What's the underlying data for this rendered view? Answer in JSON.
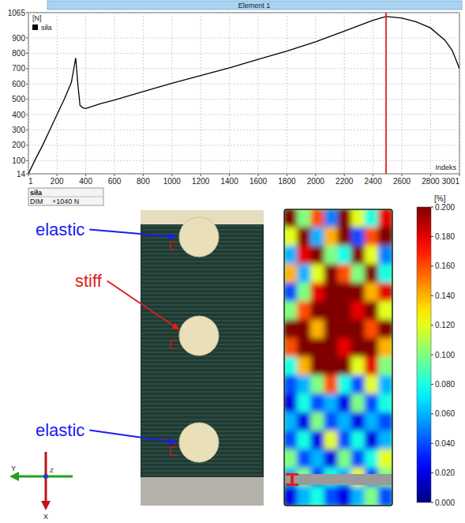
{
  "chart_data": {
    "type": "line",
    "title": "Element 1",
    "y_label": "[N]",
    "x_label": "Indeks",
    "x": [
      1,
      50,
      100,
      150,
      200,
      250,
      300,
      330,
      345,
      360,
      380,
      400,
      500,
      600,
      800,
      1000,
      1200,
      1400,
      1600,
      1800,
      2000,
      2200,
      2400,
      2490,
      2600,
      2700,
      2800,
      2900,
      2950,
      3001
    ],
    "series": [
      {
        "name": "siła",
        "color": "#000000",
        "values": [
          14,
          110,
          200,
          300,
          400,
          500,
          610,
          770,
          600,
          460,
          445,
          440,
          470,
          495,
          550,
          605,
          655,
          705,
          760,
          815,
          875,
          945,
          1015,
          1040,
          1030,
          1005,
          965,
          885,
          820,
          700
        ]
      }
    ],
    "xlim": [
      1,
      3001
    ],
    "ylim": [
      14,
      1065
    ],
    "xticks": [
      1,
      200,
      400,
      600,
      800,
      1000,
      1200,
      1400,
      1600,
      1800,
      2000,
      2200,
      2400,
      2600,
      2800,
      3001
    ],
    "yticks": [
      14,
      100,
      200,
      300,
      400,
      500,
      600,
      700,
      800,
      900,
      1065
    ],
    "grid": true,
    "legend": "upper left",
    "cursor": 2490
  },
  "readout": {
    "name": "siła",
    "label": "DIM",
    "value": "+1040 N"
  },
  "specimen": {
    "labels": [
      {
        "text": "elastic",
        "color": "#1c1cf0"
      },
      {
        "text": "stiff",
        "color": "#e01c1c"
      },
      {
        "text": "elastic",
        "color": "#1c1cf0"
      }
    ]
  },
  "axes_triad": {
    "labels": [
      "Y",
      "Z",
      "X"
    ]
  },
  "strain_map": {
    "unit": "[%]",
    "range": [
      0,
      0.2
    ],
    "ticks": [
      {
        "value": 0,
        "label": "0.000"
      },
      {
        "value": 0.02,
        "label": "0.020"
      },
      {
        "value": 0.04,
        "label": "0.040"
      },
      {
        "value": 0.06,
        "label": "0.060"
      },
      {
        "value": 0.08,
        "label": "0.080"
      },
      {
        "value": 0.1,
        "label": "0.100"
      },
      {
        "value": 0.12,
        "label": "0.120"
      },
      {
        "value": 0.14,
        "label": "0.140"
      },
      {
        "value": 0.16,
        "label": "0.160"
      },
      {
        "value": 0.18,
        "label": "0.180"
      },
      {
        "value": 0.2,
        "label": "0.200"
      }
    ],
    "cells": [
      [
        0.2,
        0.1,
        0.16,
        0.05,
        0.2,
        0.12,
        0.08,
        0.18
      ],
      [
        0.12,
        0.2,
        0.06,
        0.14,
        0.2,
        0.04,
        0.16,
        0.2
      ],
      [
        0.06,
        0.18,
        0.2,
        0.1,
        0.08,
        0.2,
        0.12,
        0.05
      ],
      [
        0.14,
        0.06,
        0.12,
        0.2,
        0.16,
        0.1,
        0.2,
        0.08
      ],
      [
        0.04,
        0.1,
        0.18,
        0.2,
        0.2,
        0.2,
        0.14,
        0.18
      ],
      [
        0.1,
        0.16,
        0.2,
        0.2,
        0.2,
        0.18,
        0.2,
        0.12
      ],
      [
        0.2,
        0.2,
        0.14,
        0.2,
        0.2,
        0.2,
        0.16,
        0.2
      ],
      [
        0.16,
        0.2,
        0.2,
        0.2,
        0.18,
        0.2,
        0.2,
        0.14
      ],
      [
        0.08,
        0.14,
        0.2,
        0.2,
        0.2,
        0.12,
        0.18,
        0.1
      ],
      [
        0.04,
        0.06,
        0.1,
        0.16,
        0.08,
        0.04,
        0.12,
        0.06
      ],
      [
        0.02,
        0.08,
        0.04,
        0.06,
        0.02,
        0.1,
        0.04,
        0.08
      ],
      [
        0.06,
        0.02,
        0.1,
        0.04,
        0.06,
        0.02,
        0.06,
        0.04
      ],
      [
        0.04,
        0.08,
        0.02,
        0.12,
        0.04,
        0.08,
        0.02,
        0.06
      ],
      [
        0.1,
        0.04,
        0.06,
        0.02,
        0.1,
        0.04,
        0.08,
        0.12
      ],
      [
        0.06,
        0.1,
        0.04,
        0.08,
        0.06,
        0.12,
        0.04,
        0.1
      ],
      [
        0.02,
        0.06,
        0.08,
        0.04,
        0.02,
        0.06,
        0.1,
        0.04
      ]
    ]
  }
}
